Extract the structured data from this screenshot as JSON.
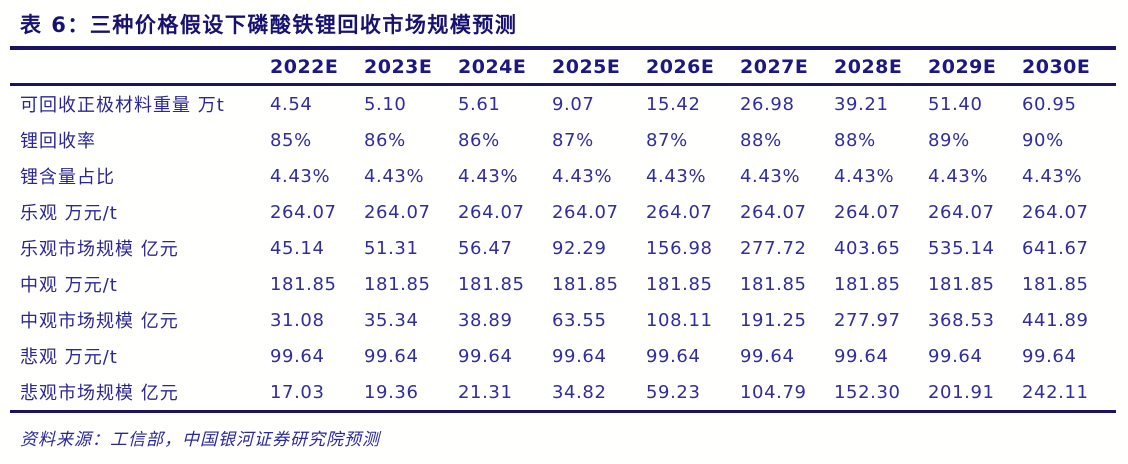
{
  "title": "表 6：三种价格假设下磷酸铁锂回收市场规模预测",
  "table": {
    "corner_label": "",
    "columns": [
      "2022E",
      "2023E",
      "2024E",
      "2025E",
      "2026E",
      "2027E",
      "2028E",
      "2029E",
      "2030E"
    ],
    "rows": [
      {
        "label": "可回收正极材料重量 万t",
        "values": [
          "4.54",
          "5.10",
          "5.61",
          "9.07",
          "15.42",
          "26.98",
          "39.21",
          "51.40",
          "60.95"
        ]
      },
      {
        "label": "锂回收率",
        "values": [
          "85%",
          "86%",
          "86%",
          "87%",
          "87%",
          "88%",
          "88%",
          "89%",
          "90%"
        ]
      },
      {
        "label": "锂含量占比",
        "values": [
          "4.43%",
          "4.43%",
          "4.43%",
          "4.43%",
          "4.43%",
          "4.43%",
          "4.43%",
          "4.43%",
          "4.43%"
        ]
      },
      {
        "label": "乐观 万元/t",
        "values": [
          "264.07",
          "264.07",
          "264.07",
          "264.07",
          "264.07",
          "264.07",
          "264.07",
          "264.07",
          "264.07"
        ]
      },
      {
        "label": "乐观市场规模 亿元",
        "values": [
          "45.14",
          "51.31",
          "56.47",
          "92.29",
          "156.98",
          "277.72",
          "403.65",
          "535.14",
          "641.67"
        ]
      },
      {
        "label": "中观 万元/t",
        "values": [
          "181.85",
          "181.85",
          "181.85",
          "181.85",
          "181.85",
          "181.85",
          "181.85",
          "181.85",
          "181.85"
        ]
      },
      {
        "label": "中观市场规模 亿元",
        "values": [
          "31.08",
          "35.34",
          "38.89",
          "63.55",
          "108.11",
          "191.25",
          "277.97",
          "368.53",
          "441.89"
        ]
      },
      {
        "label": "悲观 万元/t",
        "values": [
          "99.64",
          "99.64",
          "99.64",
          "99.64",
          "99.64",
          "99.64",
          "99.64",
          "99.64",
          "99.64"
        ]
      },
      {
        "label": "悲观市场规模 亿元",
        "values": [
          "17.03",
          "19.36",
          "21.31",
          "34.82",
          "59.23",
          "104.79",
          "152.30",
          "201.91",
          "242.11"
        ]
      }
    ]
  },
  "footer": {
    "source_label": "资料来源：工信部，中国银河证券研究院预测"
  },
  "colors": {
    "title_navy": "#17126f",
    "header_navy": "#1d1782",
    "data_indigo": "#312e9c",
    "rule_navy": "#1b1464",
    "background": "#fffffd"
  }
}
